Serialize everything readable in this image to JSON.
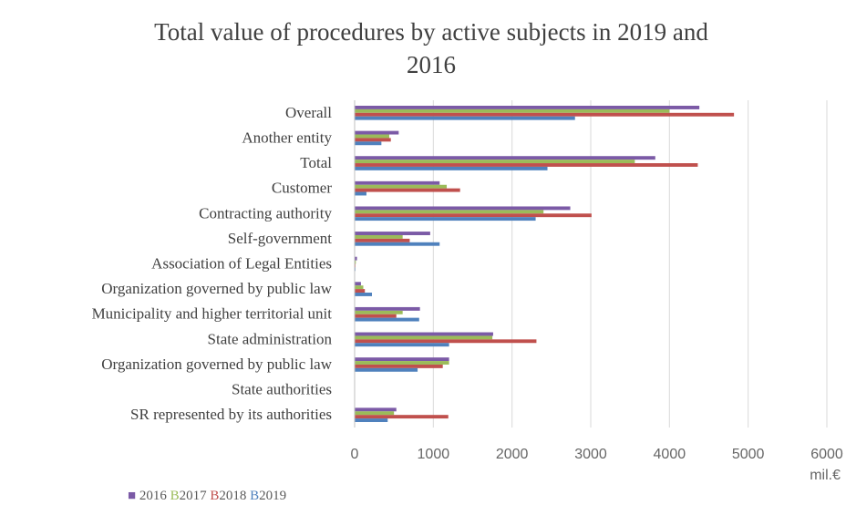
{
  "chart_data": {
    "type": "bar",
    "orientation": "horizontal",
    "title_lines": [
      "Total value of procedures by active subjects in 2019 and",
      "2016"
    ],
    "categories": [
      "Overall",
      "Another entity",
      "Total",
      "Customer",
      "Contracting authority",
      "Self-government",
      "Association of Legal Entities",
      "Organization governed by public law",
      "Municipality and higher territorial unit",
      "State administration",
      "Organization governed by public law",
      "State authorities",
      "SR represented by its authorities"
    ],
    "series": [
      {
        "name": "2016",
        "legend_prefix": "",
        "color": "#7b5aa6",
        "values": [
          4380,
          560,
          3820,
          1080,
          2740,
          960,
          30,
          80,
          830,
          1760,
          1200,
          5,
          530
        ]
      },
      {
        "name": "2017",
        "legend_prefix": "B",
        "color": "#9bbb59",
        "values": [
          4000,
          440,
          3560,
          1170,
          2400,
          610,
          15,
          110,
          610,
          1750,
          1200,
          3,
          500
        ]
      },
      {
        "name": "2018",
        "legend_prefix": "B",
        "color": "#c0504d",
        "values": [
          4820,
          460,
          4360,
          1340,
          3010,
          700,
          10,
          130,
          530,
          2310,
          1120,
          3,
          1190
        ]
      },
      {
        "name": "2019",
        "legend_prefix": "B",
        "color": "#4f81bd",
        "values": [
          2800,
          340,
          2450,
          150,
          2300,
          1080,
          10,
          220,
          820,
          1200,
          800,
          2,
          420
        ]
      }
    ],
    "x_ticks": [
      "0",
      "1000",
      "2000",
      "3000",
      "4000",
      "5000",
      "6000"
    ],
    "xlim": [
      0,
      6000
    ],
    "unit_label": "mil.€",
    "legend_marker": "■",
    "legend_position": "bottom-left",
    "grid": true,
    "gridline_color": "#d9d9d9",
    "text_color": "#404040"
  }
}
